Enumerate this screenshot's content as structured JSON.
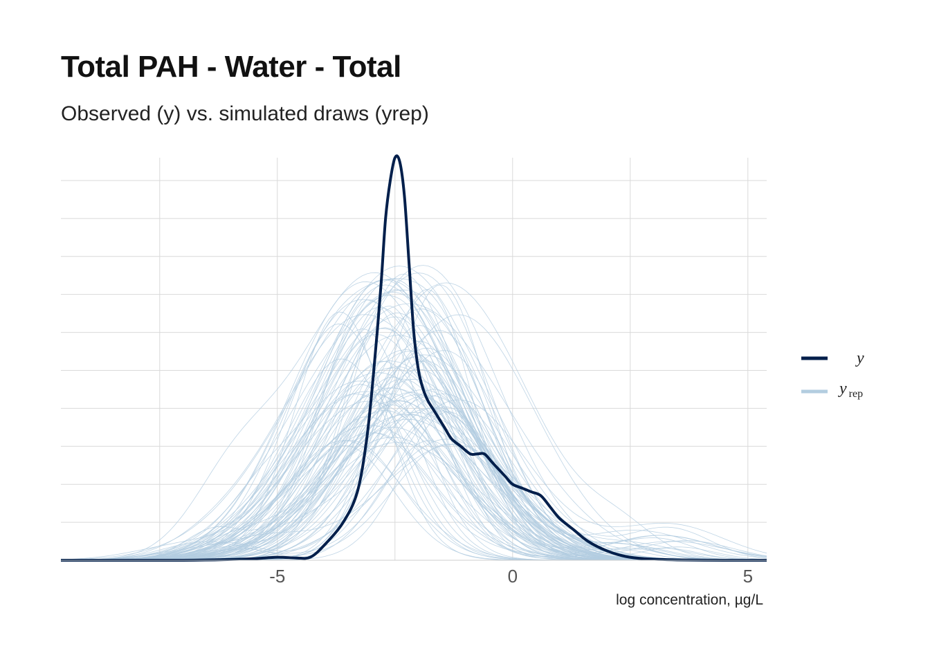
{
  "chart_data": {
    "type": "line",
    "title": "Total PAH - Water - Total",
    "subtitle": "Observed (y) vs. simulated draws (yrep)",
    "xlabel": "log concentration, µg/L",
    "ylabel": "",
    "xlim": [
      -9.6,
      5.4
    ],
    "ylim": [
      0,
      1.06
    ],
    "x_ticks": [
      -5,
      0,
      5
    ],
    "x_tick_labels": [
      "-5",
      "0",
      "5"
    ],
    "grid": true,
    "legend_position": "right",
    "legend": [
      {
        "key": "y",
        "label": "y",
        "sub": ""
      },
      {
        "key": "yrep",
        "label": "y",
        "sub": "rep"
      }
    ],
    "colors": {
      "y": "#011f4b",
      "yrep": "#b3cde0",
      "grid": "#d9d9d9",
      "axis": "#cccccc"
    },
    "observed": {
      "x": [
        -9.6,
        -7,
        -6,
        -5.5,
        -5,
        -4.6,
        -4.3,
        -4.0,
        -3.6,
        -3.3,
        -3.1,
        -2.95,
        -2.8,
        -2.7,
        -2.6,
        -2.5,
        -2.4,
        -2.3,
        -2.2,
        -2.1,
        -2.0,
        -1.9,
        -1.8,
        -1.7,
        -1.6,
        -1.45,
        -1.3,
        -1.1,
        -0.9,
        -0.75,
        -0.6,
        -0.45,
        -0.3,
        -0.15,
        0,
        0.2,
        0.4,
        0.6,
        0.8,
        1.0,
        1.3,
        1.6,
        2.0,
        2.4,
        2.8,
        3.5,
        4.5,
        5.4
      ],
      "y": [
        0,
        0,
        0.002,
        0.004,
        0.008,
        0.006,
        0.008,
        0.04,
        0.1,
        0.18,
        0.32,
        0.5,
        0.72,
        0.9,
        1.0,
        1.06,
        1.05,
        0.96,
        0.78,
        0.6,
        0.5,
        0.45,
        0.42,
        0.4,
        0.38,
        0.35,
        0.32,
        0.3,
        0.28,
        0.28,
        0.28,
        0.26,
        0.24,
        0.22,
        0.2,
        0.19,
        0.18,
        0.17,
        0.14,
        0.11,
        0.08,
        0.05,
        0.025,
        0.01,
        0.004,
        0.001,
        0,
        0
      ]
    },
    "simulated": {
      "n_draws": 100,
      "x": [
        -9.6,
        -8,
        -7,
        -6,
        -5,
        -4,
        -3,
        -2,
        -1,
        0,
        1,
        2,
        3,
        4,
        5,
        5.4
      ],
      "y_mean": [
        0,
        0.02,
        0.04,
        0.08,
        0.16,
        0.26,
        0.37,
        0.44,
        0.43,
        0.34,
        0.2,
        0.07,
        0.02,
        0.006,
        0.001,
        0
      ],
      "y_peak_range": [
        0.3,
        0.78
      ]
    }
  }
}
